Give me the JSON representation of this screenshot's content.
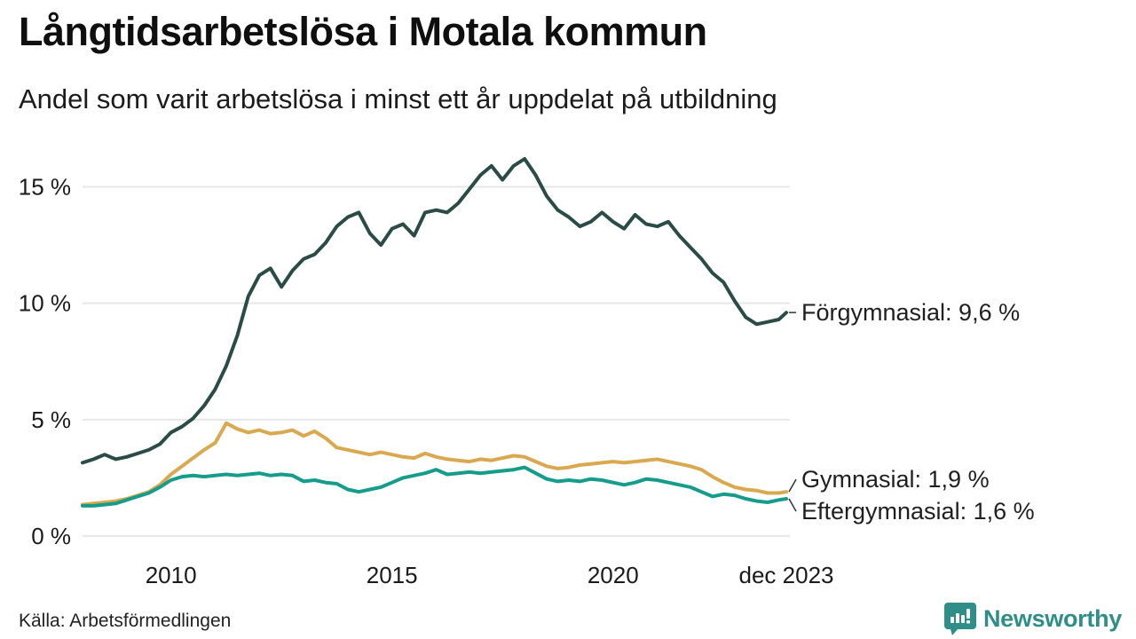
{
  "header": {
    "title": "Långtidsarbetslösa i Motala kommun",
    "subtitle": "Andel som varit arbetslösa i minst ett år uppdelat på utbildning"
  },
  "footer": {
    "source": "Källa: Arbetsförmedlingen",
    "brand_name": "Newsworthy",
    "brand_color": "#2f8e88",
    "brand_icon": "bar-chart-bubble-icon"
  },
  "chart_data": {
    "type": "line",
    "title": "Långtidsarbetslösa i Motala kommun",
    "subtitle": "Andel som varit arbetslösa i minst ett år uppdelat på utbildning",
    "xlabel": "",
    "ylabel": "",
    "grid": true,
    "legend_position": "right-end-labels",
    "x_range": [
      2008,
      2023.92
    ],
    "ylim": [
      0,
      16.5
    ],
    "y_ticks": [
      {
        "value": 0,
        "label": "0 %"
      },
      {
        "value": 5,
        "label": "5 %"
      },
      {
        "value": 10,
        "label": "10 %"
      },
      {
        "value": 15,
        "label": "15 %"
      }
    ],
    "x_ticks": [
      {
        "value": 2010,
        "label": "2010"
      },
      {
        "value": 2015,
        "label": "2015"
      },
      {
        "value": 2020,
        "label": "2020"
      },
      {
        "value": 2023.92,
        "label": "dec 2023"
      }
    ],
    "x": [
      2008.0,
      2008.25,
      2008.5,
      2008.75,
      2009.0,
      2009.25,
      2009.5,
      2009.75,
      2010.0,
      2010.25,
      2010.5,
      2010.75,
      2011.0,
      2011.25,
      2011.5,
      2011.75,
      2012.0,
      2012.25,
      2012.5,
      2012.75,
      2013.0,
      2013.25,
      2013.5,
      2013.75,
      2014.0,
      2014.25,
      2014.5,
      2014.75,
      2015.0,
      2015.25,
      2015.5,
      2015.75,
      2016.0,
      2016.25,
      2016.5,
      2016.75,
      2017.0,
      2017.25,
      2017.5,
      2017.75,
      2018.0,
      2018.25,
      2018.5,
      2018.75,
      2019.0,
      2019.25,
      2019.5,
      2019.75,
      2020.0,
      2020.25,
      2020.5,
      2020.75,
      2021.0,
      2021.25,
      2021.5,
      2021.75,
      2022.0,
      2022.25,
      2022.5,
      2022.75,
      2023.0,
      2023.25,
      2023.5,
      2023.75,
      2023.92
    ],
    "series": [
      {
        "name": "Förgymnasial",
        "end_label": "Förgymnasial: 9,6 %",
        "end_value": "9,6 %",
        "color": "#2b4c46",
        "values": [
          3.15,
          3.3,
          3.5,
          3.3,
          3.4,
          3.55,
          3.7,
          3.95,
          4.45,
          4.7,
          5.05,
          5.6,
          6.3,
          7.3,
          8.6,
          10.3,
          11.2,
          11.5,
          10.7,
          11.4,
          11.9,
          12.1,
          12.6,
          13.3,
          13.7,
          13.9,
          13.0,
          12.5,
          13.2,
          13.4,
          12.9,
          13.9,
          14.0,
          13.9,
          14.3,
          14.9,
          15.5,
          15.9,
          15.3,
          15.9,
          16.2,
          15.5,
          14.6,
          14.0,
          13.7,
          13.3,
          13.5,
          13.9,
          13.5,
          13.2,
          13.8,
          13.4,
          13.3,
          13.5,
          12.9,
          12.4,
          11.9,
          11.3,
          10.9,
          10.1,
          9.4,
          9.1,
          9.2,
          9.3,
          9.6
        ]
      },
      {
        "name": "Gymnasial",
        "end_label": "Gymnasial: 1,9 %",
        "end_value": "1,9 %",
        "color": "#d9a84f",
        "values": [
          1.35,
          1.4,
          1.45,
          1.5,
          1.6,
          1.75,
          1.9,
          2.2,
          2.65,
          3.0,
          3.35,
          3.7,
          4.0,
          4.85,
          4.6,
          4.45,
          4.55,
          4.4,
          4.45,
          4.55,
          4.3,
          4.5,
          4.2,
          3.8,
          3.7,
          3.6,
          3.5,
          3.6,
          3.5,
          3.4,
          3.35,
          3.55,
          3.4,
          3.3,
          3.25,
          3.2,
          3.3,
          3.25,
          3.35,
          3.45,
          3.4,
          3.2,
          3.0,
          2.9,
          2.95,
          3.05,
          3.1,
          3.15,
          3.2,
          3.15,
          3.2,
          3.25,
          3.3,
          3.2,
          3.1,
          3.0,
          2.85,
          2.55,
          2.3,
          2.1,
          2.0,
          1.95,
          1.85,
          1.85,
          1.9
        ]
      },
      {
        "name": "Eftergymnasial",
        "end_label": "Eftergymnasial: 1,6 %",
        "end_value": "1,6 %",
        "color": "#169c8b",
        "values": [
          1.3,
          1.3,
          1.35,
          1.4,
          1.55,
          1.7,
          1.85,
          2.1,
          2.4,
          2.55,
          2.6,
          2.55,
          2.6,
          2.65,
          2.6,
          2.65,
          2.7,
          2.6,
          2.65,
          2.6,
          2.35,
          2.4,
          2.3,
          2.25,
          2.0,
          1.9,
          2.0,
          2.1,
          2.3,
          2.5,
          2.6,
          2.7,
          2.85,
          2.65,
          2.7,
          2.75,
          2.7,
          2.75,
          2.8,
          2.85,
          2.95,
          2.7,
          2.45,
          2.35,
          2.4,
          2.35,
          2.45,
          2.4,
          2.3,
          2.2,
          2.3,
          2.45,
          2.4,
          2.3,
          2.2,
          2.1,
          1.9,
          1.7,
          1.8,
          1.75,
          1.6,
          1.5,
          1.45,
          1.55,
          1.6
        ]
      }
    ]
  }
}
